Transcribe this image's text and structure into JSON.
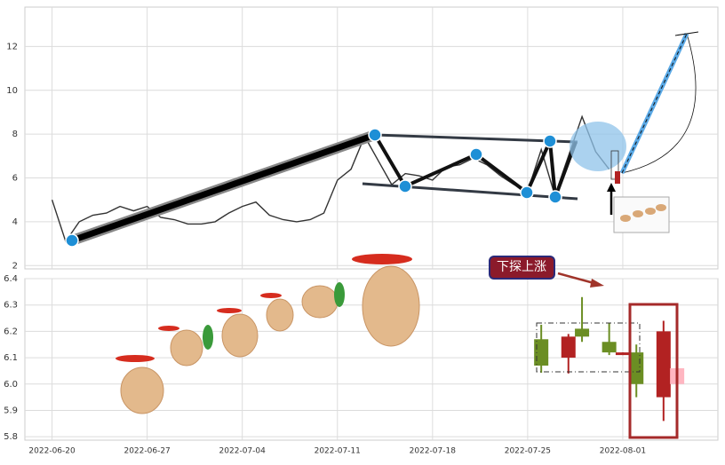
{
  "chart_data": [
    {
      "type": "line",
      "color": "#333333",
      "grid": true,
      "x": [
        "2022-06-20",
        "2022-06-21",
        "2022-06-22",
        "2022-06-23",
        "2022-06-24",
        "2022-06-25",
        "2022-06-26",
        "2022-06-27",
        "2022-06-28",
        "2022-06-29",
        "2022-06-30",
        "2022-07-01",
        "2022-07-02",
        "2022-07-03",
        "2022-07-04",
        "2022-07-05",
        "2022-07-06",
        "2022-07-07",
        "2022-07-08",
        "2022-07-09",
        "2022-07-10",
        "2022-07-11",
        "2022-07-12",
        "2022-07-13",
        "2022-07-14",
        "2022-07-15",
        "2022-07-16",
        "2022-07-17",
        "2022-07-18",
        "2022-07-19",
        "2022-07-20",
        "2022-07-21",
        "2022-07-22",
        "2022-07-23",
        "2022-07-24",
        "2022-07-25",
        "2022-07-26",
        "2022-07-27",
        "2022-07-28",
        "2022-07-29",
        "2022-07-30",
        "2022-07-31"
      ],
      "values": [
        5.0,
        3.1,
        4.0,
        4.3,
        4.4,
        4.7,
        4.5,
        4.7,
        4.2,
        4.1,
        3.9,
        3.9,
        4.0,
        4.4,
        4.7,
        4.9,
        4.3,
        4.1,
        4.0,
        4.1,
        4.4,
        5.9,
        6.4,
        7.9,
        6.8,
        5.7,
        6.2,
        6.1,
        5.9,
        6.5,
        6.6,
        6.9,
        6.6,
        6.1,
        5.7,
        5.4,
        7.3,
        5.2,
        7.0,
        8.8,
        7.2,
        6.4
      ],
      "xlim": [
        "2022-06-18",
        "2022-08-08"
      ],
      "xticks": [
        "2022-06-20",
        "2022-06-27",
        "2022-07-04",
        "2022-07-11",
        "2022-07-18",
        "2022-07-25",
        "2022-08-01"
      ],
      "ylim": [
        1.85,
        13.8
      ],
      "yticks": [
        2,
        4,
        6,
        8,
        10,
        12
      ]
    },
    {
      "type": "candlestick",
      "grid": true,
      "annotation": "下探上涨",
      "x": [
        "2022-07-26",
        "2022-07-28",
        "2022-07-29",
        "2022-07-31",
        "2022-08-01",
        "2022-08-02",
        "2022-08-04",
        "2022-08-05"
      ],
      "open": [
        6.17,
        6.1,
        6.21,
        6.16,
        6.11,
        6.12,
        5.95,
        6.06
      ],
      "high": [
        6.225,
        6.19,
        6.33,
        6.23,
        6.12,
        6.15,
        6.24,
        6.16
      ],
      "low": [
        6.043,
        6.04,
        6.16,
        6.11,
        6.11,
        5.95,
        5.86,
        5.97
      ],
      "close": [
        6.07,
        6.18,
        6.18,
        6.12,
        6.12,
        6.0,
        6.2,
        6.0
      ],
      "colors": [
        "#6b8e23",
        "#b22222",
        "#6b8e23",
        "#6b8e23",
        "#b22222",
        "#6b8e23",
        "#b22222",
        "#ffb6c1"
      ],
      "xlim": [
        "2022-06-18",
        "2022-08-08"
      ],
      "xticks": [
        "2022-06-20",
        "2022-06-27",
        "2022-07-04",
        "2022-07-11",
        "2022-07-18",
        "2022-07-25",
        "2022-08-01"
      ],
      "ylim": [
        5.787,
        6.4
      ],
      "yticks": [
        5.8,
        5.9,
        {
          "value": 6,
          "label": "6.0"
        },
        6.1,
        6.2,
        6.3,
        6.4
      ]
    }
  ]
}
